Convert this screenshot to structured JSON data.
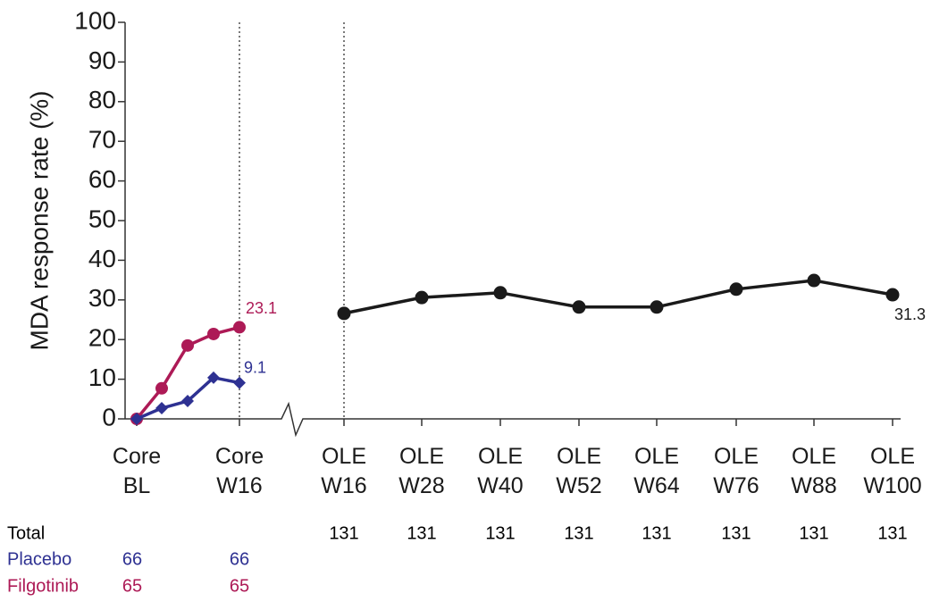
{
  "chart_data": {
    "type": "line",
    "y_label": "MDA response rate (%)",
    "categories": [
      "Core BL",
      null,
      null,
      null,
      "Core W16",
      "OLE W16",
      "OLE W28",
      "OLE W40",
      "OLE W52",
      "OLE W64",
      "OLE W76",
      "OLE W88",
      "OLE W100"
    ],
    "ylim": [
      0,
      100
    ],
    "yticks": [
      0,
      10,
      20,
      30,
      40,
      50,
      60,
      70,
      80,
      90,
      100
    ],
    "series": [
      {
        "name": "Filgotinib",
        "color": "#ad1a56",
        "marker": "circle",
        "values": [
          0,
          7.7,
          18.5,
          21.4,
          23.1,
          null,
          null,
          null,
          null,
          null,
          null,
          null,
          null
        ],
        "value_labels": [
          null,
          null,
          null,
          null,
          "23.1",
          null,
          null,
          null,
          null,
          null,
          null,
          null,
          null
        ]
      },
      {
        "name": "Placebo",
        "color": "#2e3192",
        "marker": "diamond",
        "values": [
          0,
          2.7,
          4.5,
          10.4,
          9.1,
          null,
          null,
          null,
          null,
          null,
          null,
          null,
          null
        ],
        "value_labels": [
          null,
          null,
          null,
          null,
          "9.1",
          null,
          null,
          null,
          null,
          null,
          null,
          null,
          null
        ]
      },
      {
        "name": "Total",
        "color": "#1a1a1a",
        "marker": "circle",
        "values": [
          null,
          null,
          null,
          null,
          null,
          26.6,
          30.6,
          31.8,
          28.2,
          28.2,
          32.7,
          34.9,
          31.3
        ],
        "value_labels": [
          null,
          null,
          null,
          null,
          null,
          null,
          null,
          null,
          null,
          null,
          null,
          null,
          "31.3"
        ]
      }
    ],
    "n_table": [
      {
        "name": "Total",
        "color": "#000000",
        "values": [
          null,
          null,
          null,
          null,
          null,
          131,
          131,
          131,
          131,
          131,
          131,
          131,
          131
        ]
      },
      {
        "name": "Placebo",
        "color": "#2e3192",
        "values": [
          66,
          null,
          null,
          null,
          66,
          null,
          null,
          null,
          null,
          null,
          null,
          null,
          null
        ]
      },
      {
        "name": "Filgotinib",
        "color": "#ad1a56",
        "values": [
          65,
          null,
          null,
          null,
          65,
          null,
          null,
          null,
          null,
          null,
          null,
          null,
          null
        ]
      }
    ]
  }
}
